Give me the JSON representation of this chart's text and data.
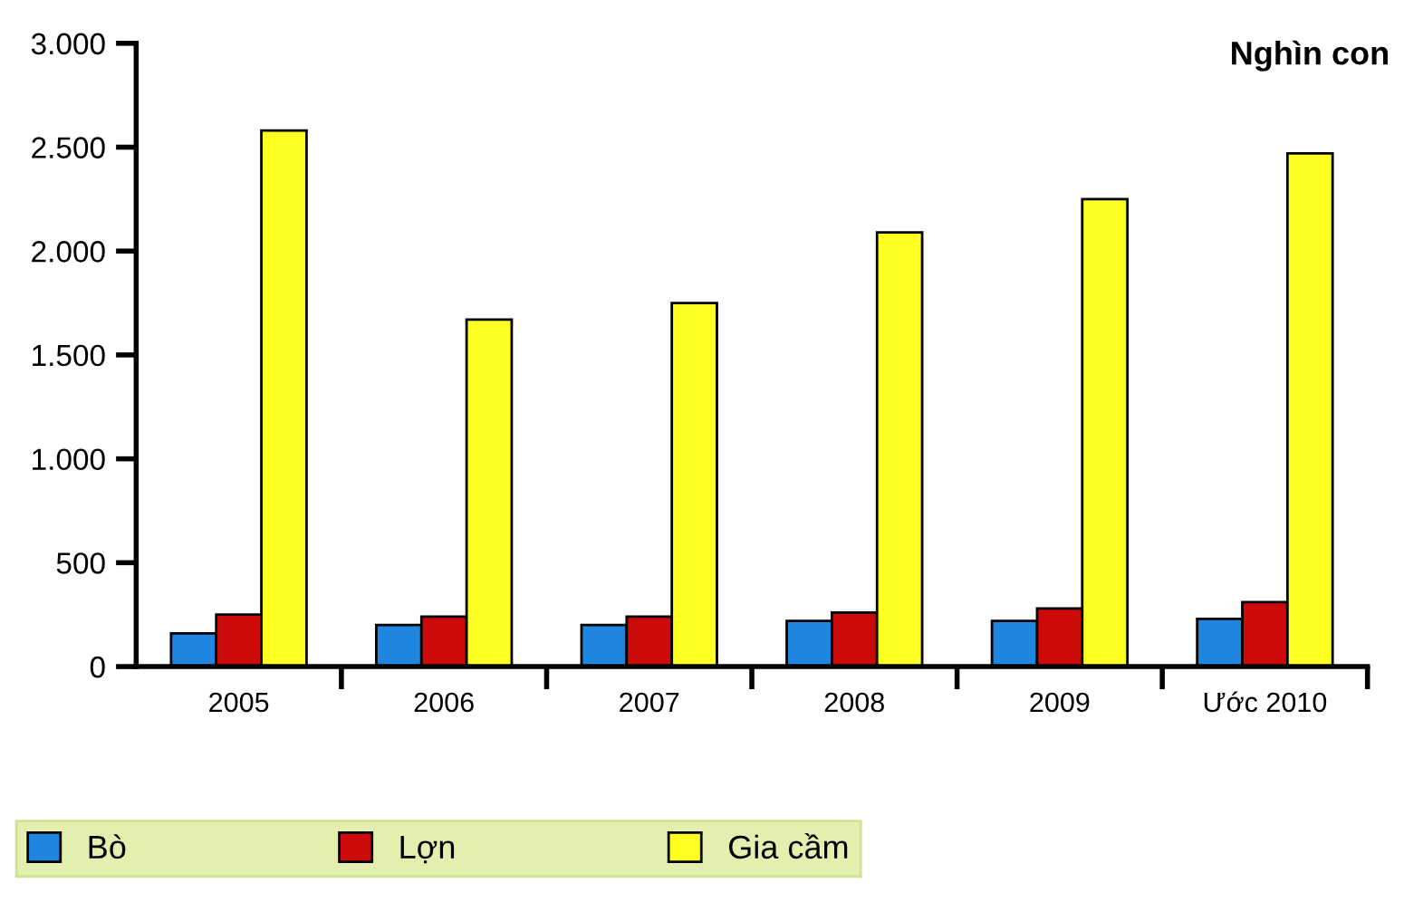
{
  "chart_data": {
    "type": "bar",
    "ylabel": "Nghìn con",
    "categories": [
      "2005",
      "2006",
      "2007",
      "2008",
      "2009",
      "Ước 2010"
    ],
    "series": [
      {
        "name": "Bò",
        "color": "#1f86e0",
        "values": [
          160,
          200,
          200,
          220,
          220,
          230
        ]
      },
      {
        "name": "Lợn",
        "color": "#cc0a0a",
        "values": [
          250,
          240,
          240,
          260,
          280,
          310
        ]
      },
      {
        "name": "Gia cầm",
        "color": "#ffff22",
        "values": [
          2580,
          1670,
          1750,
          2090,
          2250,
          2470
        ]
      }
    ],
    "ylim": [
      0,
      3000
    ],
    "yticks": [
      0,
      500,
      {
        "value": 1000,
        "label": "1.000"
      },
      {
        "value": 1500,
        "label": "1.500"
      },
      {
        "value": 2000,
        "label": "2.000"
      },
      {
        "value": 2500,
        "label": "2.500"
      },
      {
        "value": 3000,
        "label": "3.000"
      }
    ],
    "grid": false,
    "legend": "bottom left"
  }
}
